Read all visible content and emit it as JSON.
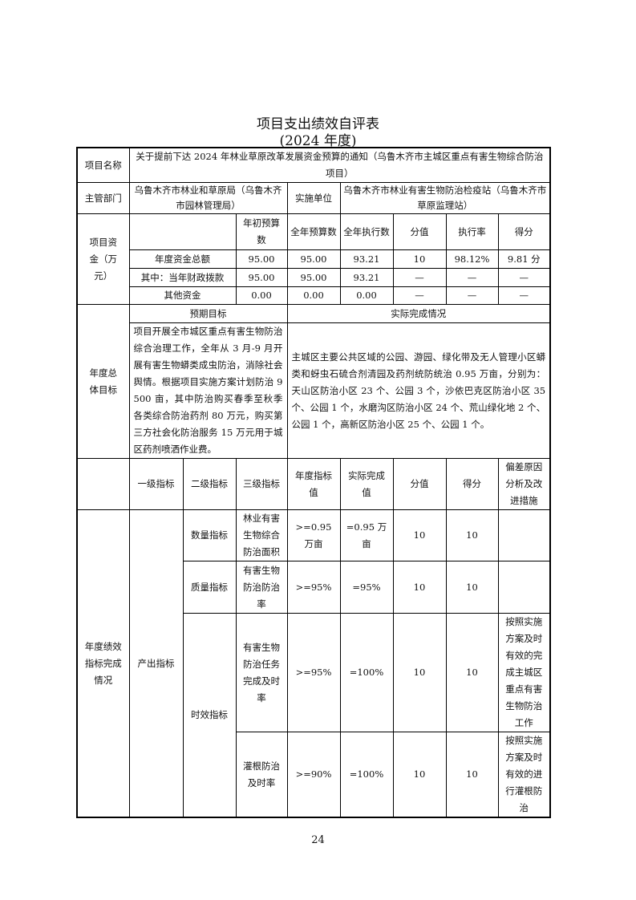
{
  "title": "项目支出绩效自评表",
  "subtitle": "(2024 年度)",
  "project": {
    "label": "项目名称",
    "value": "关于提前下达 2024 年林业草原改革发展资金预算的通知（乌鲁木齐市主城区重点有害生物综合防治项目）"
  },
  "dept": {
    "label": "主管部门",
    "value": "乌鲁木齐市林业和草原局（乌鲁木齐市园林管理局）",
    "impl_label": "实施单位",
    "impl_value": "乌鲁木齐市林业有害生物防治检疫站（乌鲁木齐市草原监理站）"
  },
  "funds": {
    "label": "项目资金（万元）",
    "headers": [
      "年初预算数",
      "全年预算数",
      "全年执行数",
      "分值",
      "执行率",
      "得分"
    ],
    "rows": [
      {
        "name": "年度资金总额",
        "values": [
          "95.00",
          "95.00",
          "93.21",
          "10",
          "98.12%",
          "9.81 分"
        ]
      },
      {
        "name": "其中：当年财政拨款",
        "values": [
          "95.00",
          "95.00",
          "93.21",
          "—",
          "—",
          "—"
        ]
      },
      {
        "name": "其他资金",
        "values": [
          "0.00",
          "0.00",
          "0.00",
          "—",
          "—",
          "—"
        ]
      }
    ]
  },
  "goals": {
    "label": "年度总体目标",
    "expected_label": "预期目标",
    "actual_label": "实际完成情况",
    "expected": "项目开展全市城区重点有害生物防治综合治理工作，全年从 3 月-9 月开展有害生物蟒类成虫防治，消除社会舆情。根据项目实施方案计划防治 9500 亩，其中防治购买春季至秋季各类综合防治药剂 80 万元，购买第三方社会化防治服务 15 万元用于城区药剂喷洒作业费。",
    "actual": "主城区主要公共区域的公园、游园、绿化带及无人管理小区蟒类和蚜虫石硫合剂清园及药剂统防统治 0.95 万亩，分别为：天山区防治小区 23 个、公园 3 个，沙依巴克区防治小区 35 个、公园 1 个，水磨沟区防治小区 24 个、荒山绿化地 2 个、公园 1 个，高新区防治小区 25 个、公园 1 个。"
  },
  "indicators": {
    "label": "年度绩效指标完成情况",
    "headers": [
      "一级指标",
      "二级指标",
      "三级指标",
      "年度指标值",
      "实际完成值",
      "分值",
      "得分",
      "偏差原因分析及改进措施"
    ],
    "level1": "产出指标",
    "rows": [
      {
        "level2": "数量指标",
        "level3": "林业有害生物综合防治面积",
        "target": ">=0.95 万亩",
        "actual": "=0.95 万亩",
        "weight": "10",
        "score": "10",
        "note": ""
      },
      {
        "level2": "质量指标",
        "level3": "有害生物防治防治率",
        "target": ">=95%",
        "actual": "=95%",
        "weight": "10",
        "score": "10",
        "note": ""
      },
      {
        "level2": "时效指标",
        "level3": "有害生物防治任务完成及时率",
        "target": ">=95%",
        "actual": "=100%",
        "weight": "10",
        "score": "10",
        "note": "按照实施方案及时有效的完成主城区重点有害生物防治工作"
      },
      {
        "level2": "",
        "level3": "灌根防治及时率",
        "target": ">=90%",
        "actual": "=100%",
        "weight": "10",
        "score": "10",
        "note": "按照实施方案及时有效的进行灌根防治"
      }
    ]
  },
  "page_number": "24"
}
